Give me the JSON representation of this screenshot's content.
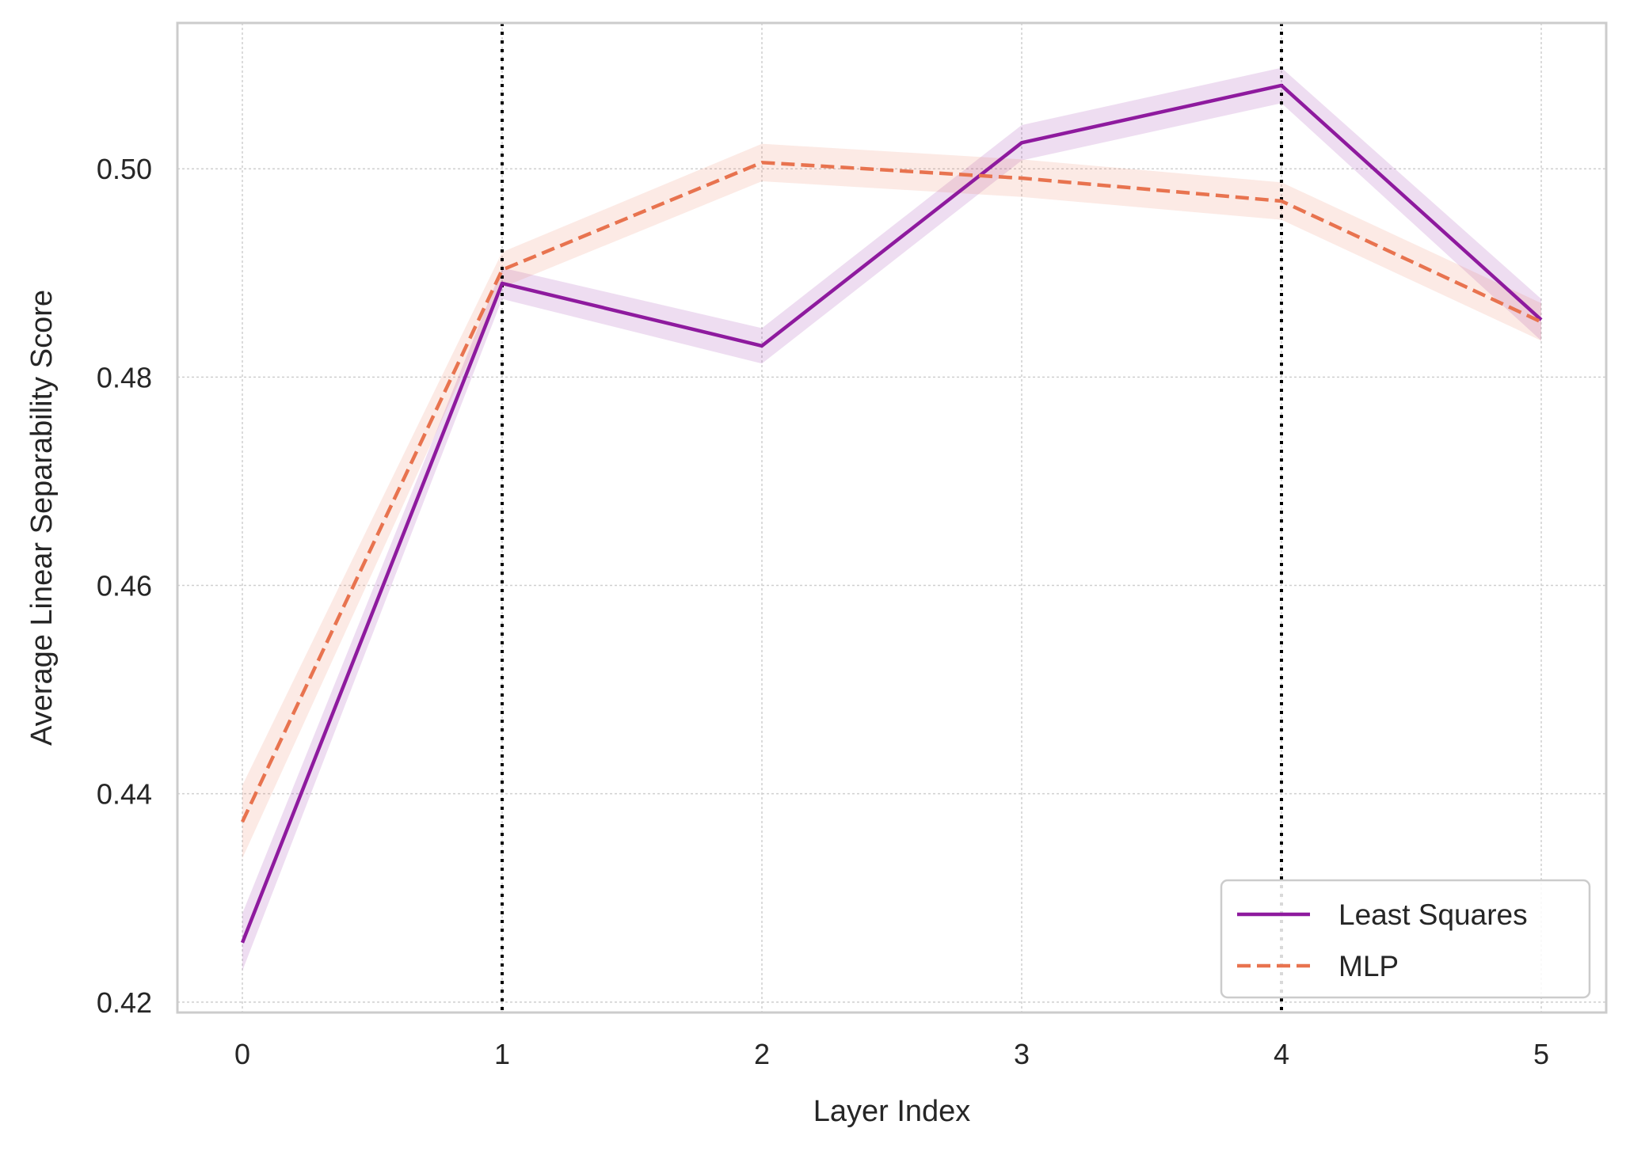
{
  "chart_data": {
    "type": "line",
    "title": "",
    "xlabel": "Layer Index",
    "ylabel": "Average Linear Separability Score",
    "x": [
      0,
      1,
      2,
      3,
      4,
      5
    ],
    "xticks": [
      "0",
      "1",
      "2",
      "3",
      "4",
      "5"
    ],
    "yticks": [
      "0.42",
      "0.44",
      "0.46",
      "0.48",
      "0.50"
    ],
    "xlim": [
      -0.25,
      5.25
    ],
    "ylim": [
      0.419,
      0.514
    ],
    "grid": true,
    "legend_position": "lower-right",
    "vertical_markers": [
      1,
      4
    ],
    "series": [
      {
        "name": "Least Squares",
        "color": "#8e1a9e",
        "style": "solid",
        "values": [
          0.4257,
          0.489,
          0.483,
          0.5025,
          0.508,
          0.4855
        ],
        "lower": [
          0.423,
          0.4875,
          0.4813,
          0.5008,
          0.5063,
          0.4835
        ],
        "upper": [
          0.4285,
          0.4905,
          0.4847,
          0.5042,
          0.5097,
          0.4875
        ]
      },
      {
        "name": "MLP",
        "color": "#e8734f",
        "style": "dashed",
        "values": [
          0.4373,
          0.4903,
          0.5006,
          0.4991,
          0.4969,
          0.4853
        ],
        "lower": [
          0.4338,
          0.4886,
          0.4988,
          0.4973,
          0.4951,
          0.4835
        ],
        "upper": [
          0.4408,
          0.492,
          0.5024,
          0.5009,
          0.4987,
          0.4871
        ]
      }
    ]
  }
}
